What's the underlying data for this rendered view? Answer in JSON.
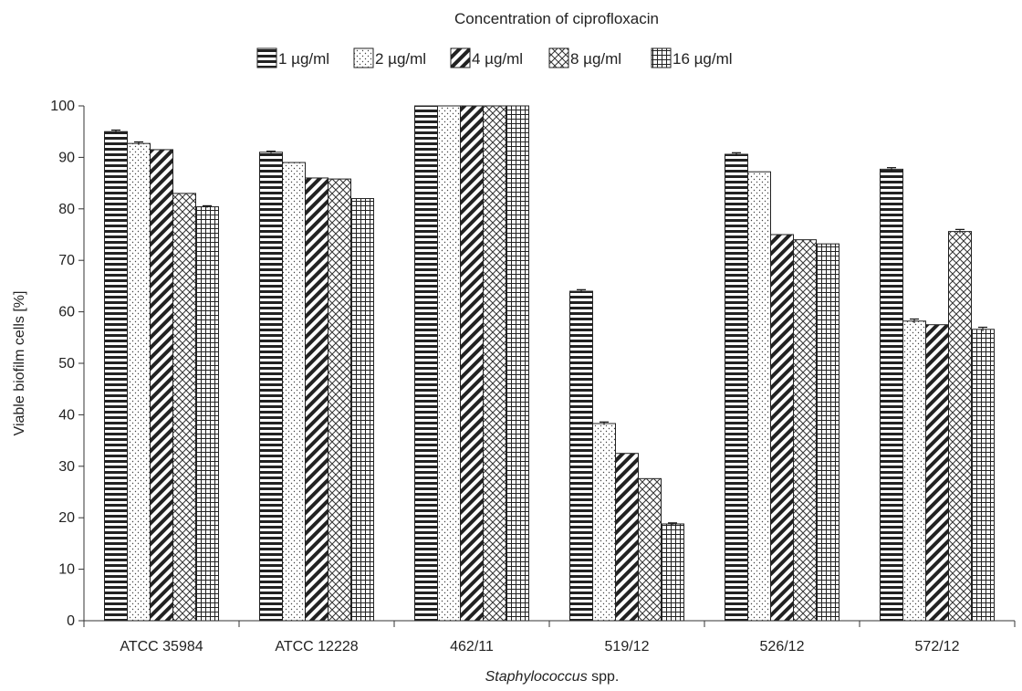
{
  "chart_data": {
    "type": "bar",
    "legend_title": "Concentration of ciprofloxacin",
    "xlabel_italic": "Staphylococcus",
    "xlabel_rest": " spp.",
    "ylabel": "Viable biofilm cells [%]",
    "ylim": [
      0,
      100
    ],
    "yticks": [
      "0",
      "10",
      "20",
      "30",
      "40",
      "50",
      "60",
      "70",
      "80",
      "90",
      "100"
    ],
    "grid": false,
    "legend_position": "top",
    "categories": [
      "ATCC 35984",
      "ATCC 12228",
      "462/11",
      "519/12",
      "526/12",
      "572/12"
    ],
    "series": [
      {
        "name": "1 µg/ml",
        "pattern": "horizontal",
        "values": [
          95.0,
          91.0,
          100,
          64.0,
          90.6,
          87.7
        ],
        "errors": [
          0.3,
          0.2,
          0,
          0.3,
          0.3,
          0.3
        ]
      },
      {
        "name": "2 µg/ml",
        "pattern": "dots",
        "values": [
          92.7,
          89.0,
          100,
          38.3,
          87.2,
          58.2
        ],
        "errors": [
          0.3,
          0,
          0,
          0.3,
          0,
          0.4
        ]
      },
      {
        "name": "4 µg/ml",
        "pattern": "diagonal",
        "values": [
          91.5,
          86.0,
          100,
          32.5,
          75.0,
          57.5
        ],
        "errors": [
          0,
          0,
          0,
          0,
          0,
          0
        ]
      },
      {
        "name": "8 µg/ml",
        "pattern": "crosshatch",
        "values": [
          83.0,
          85.8,
          100,
          27.6,
          74.0,
          75.6
        ],
        "errors": [
          0,
          0,
          0,
          0,
          0,
          0.4
        ]
      },
      {
        "name": "16 µg/ml",
        "pattern": "grid",
        "values": [
          80.4,
          82.0,
          100,
          18.8,
          73.2,
          56.6
        ],
        "errors": [
          0.2,
          0,
          0,
          0.2,
          0,
          0.4
        ]
      }
    ]
  }
}
